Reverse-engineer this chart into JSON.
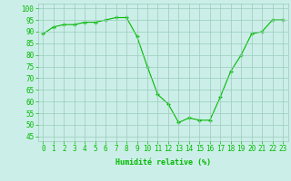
{
  "x": [
    0,
    1,
    2,
    3,
    4,
    5,
    6,
    7,
    8,
    9,
    10,
    11,
    12,
    13,
    14,
    15,
    16,
    17,
    18,
    19,
    20,
    21,
    22,
    23
  ],
  "y": [
    89,
    92,
    93,
    93,
    94,
    94,
    95,
    96,
    96,
    88,
    75,
    63,
    59,
    51,
    53,
    52,
    52,
    62,
    73,
    80,
    89,
    90,
    95,
    95
  ],
  "line_color": "#00bb00",
  "marker_color": "#00bb00",
  "bg_color": "#cceee8",
  "grid_color": "#99ccbb",
  "xlabel": "Humidité relative (%)",
  "xlabel_color": "#00bb00",
  "ytick_labels": [
    "45",
    "50",
    "55",
    "60",
    "65",
    "70",
    "75",
    "80",
    "85",
    "90",
    "95",
    "100"
  ],
  "ytick_values": [
    45,
    50,
    55,
    60,
    65,
    70,
    75,
    80,
    85,
    90,
    95,
    100
  ],
  "ylim": [
    43,
    102
  ],
  "xlim": [
    -0.5,
    23.5
  ],
  "tick_fontsize": 5.5,
  "xlabel_fontsize": 6.0
}
